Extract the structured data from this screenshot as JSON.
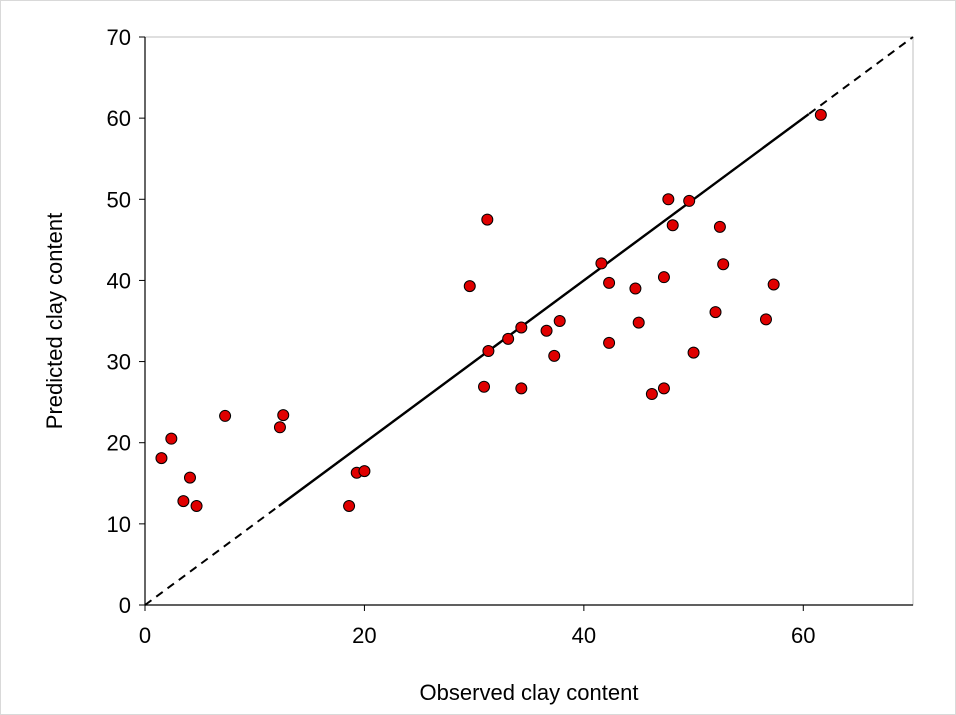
{
  "chart_data": {
    "type": "scatter",
    "title": "",
    "xlabel": "Observed clay content",
    "ylabel": "Predicted clay content",
    "xlim": [
      0,
      70
    ],
    "ylim": [
      0,
      70
    ],
    "x_ticks": [
      0,
      20,
      40,
      60
    ],
    "y_ticks": [
      0,
      10,
      20,
      30,
      40,
      50,
      60,
      70
    ],
    "grid": false,
    "legend": "none",
    "marker_color": "#e00000",
    "marker_edge_color": "#000000",
    "reference_line": {
      "from": [
        0,
        0
      ],
      "to": [
        70,
        70
      ],
      "style": "dashed",
      "color": "#000000"
    },
    "fit_line": {
      "from": [
        12.2,
        12.2
      ],
      "to": [
        60.5,
        60.5
      ],
      "style": "solid",
      "color": "#000000"
    },
    "points": [
      {
        "x": 1.5,
        "y": 18.1
      },
      {
        "x": 2.4,
        "y": 20.5
      },
      {
        "x": 3.5,
        "y": 12.8
      },
      {
        "x": 4.1,
        "y": 15.7
      },
      {
        "x": 4.7,
        "y": 12.2
      },
      {
        "x": 7.3,
        "y": 23.3
      },
      {
        "x": 12.3,
        "y": 21.9
      },
      {
        "x": 12.6,
        "y": 23.4
      },
      {
        "x": 18.6,
        "y": 12.2
      },
      {
        "x": 19.3,
        "y": 16.3
      },
      {
        "x": 20.0,
        "y": 16.5
      },
      {
        "x": 29.6,
        "y": 39.3
      },
      {
        "x": 30.9,
        "y": 26.9
      },
      {
        "x": 31.2,
        "y": 47.5
      },
      {
        "x": 31.3,
        "y": 31.3
      },
      {
        "x": 33.1,
        "y": 32.8
      },
      {
        "x": 34.3,
        "y": 34.2
      },
      {
        "x": 34.3,
        "y": 26.7
      },
      {
        "x": 36.6,
        "y": 33.8
      },
      {
        "x": 37.3,
        "y": 30.7
      },
      {
        "x": 37.8,
        "y": 35.0
      },
      {
        "x": 41.6,
        "y": 42.1
      },
      {
        "x": 42.3,
        "y": 39.7
      },
      {
        "x": 42.3,
        "y": 32.3
      },
      {
        "x": 44.7,
        "y": 39.0
      },
      {
        "x": 45.0,
        "y": 34.8
      },
      {
        "x": 46.2,
        "y": 26.0
      },
      {
        "x": 47.3,
        "y": 40.4
      },
      {
        "x": 47.3,
        "y": 26.7
      },
      {
        "x": 47.7,
        "y": 50.0
      },
      {
        "x": 48.1,
        "y": 46.8
      },
      {
        "x": 49.6,
        "y": 49.8
      },
      {
        "x": 50.0,
        "y": 31.1
      },
      {
        "x": 52.0,
        "y": 36.1
      },
      {
        "x": 52.4,
        "y": 46.6
      },
      {
        "x": 52.7,
        "y": 42.0
      },
      {
        "x": 56.6,
        "y": 35.2
      },
      {
        "x": 57.3,
        "y": 39.5
      },
      {
        "x": 61.6,
        "y": 60.4
      }
    ]
  }
}
